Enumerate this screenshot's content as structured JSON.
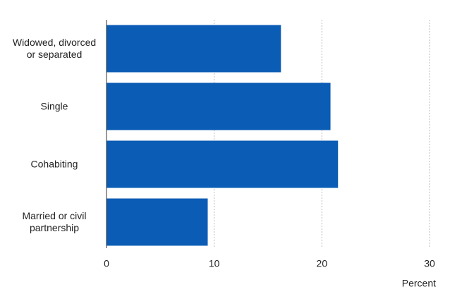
{
  "chart_data": {
    "type": "bar",
    "orientation": "horizontal",
    "categories": [
      "Widowed, divorced or separated",
      "Single",
      "Cohabiting",
      "Married or civil partnership"
    ],
    "values": [
      16.2,
      20.8,
      21.5,
      9.4
    ],
    "color": "#0b5cb5",
    "xlabel": "Percent",
    "xlim": [
      0,
      30
    ],
    "xticks": [
      0,
      10,
      20,
      30
    ],
    "grid": true
  }
}
